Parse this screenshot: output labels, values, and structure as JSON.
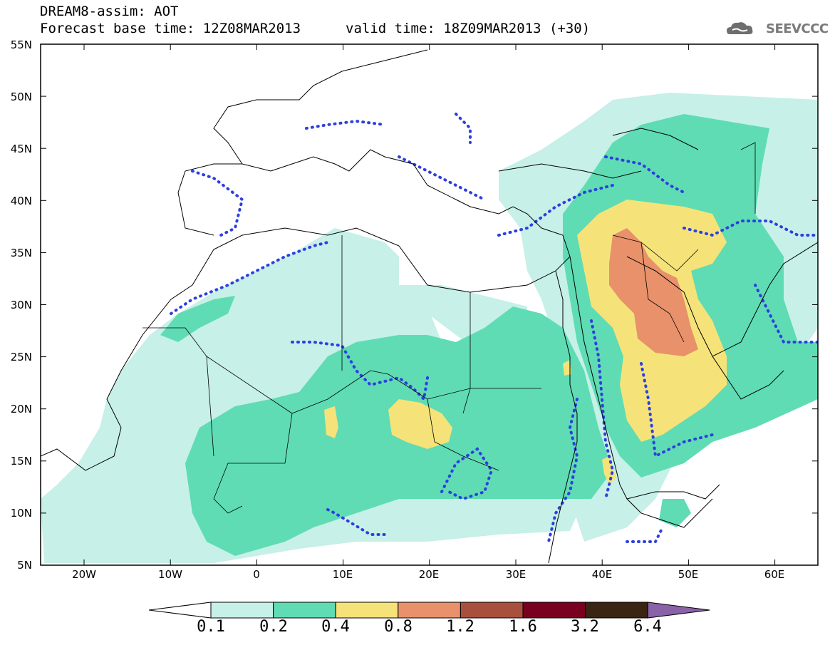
{
  "header": {
    "title_line1": "DREAM8-assim: AOT",
    "title_line2": "Forecast base time: 12Z08MAR2013",
    "valid_time": "valid time: 18Z09MAR2013 (+30)",
    "logo_text": "SEEVCCC"
  },
  "map": {
    "lat_labels": [
      "55N",
      "50N",
      "45N",
      "40N",
      "35N",
      "30N",
      "25N",
      "20N",
      "15N",
      "10N",
      "5N"
    ],
    "lon_labels": [
      "20W",
      "10W",
      "0",
      "10E",
      "20E",
      "30E",
      "40E",
      "50E",
      "60E"
    ],
    "contour_colors": [
      "#c6f0e8",
      "#5fdcb3",
      "#f5e37a",
      "#e8916a"
    ],
    "contour_line_color": "#2d3fe0",
    "border_color": "#000000"
  },
  "colorbar": {
    "labels": [
      "0.1",
      "0.2",
      "0.4",
      "0.8",
      "1.2",
      "1.6",
      "3.2",
      "6.4"
    ],
    "colors": [
      "#ffffff",
      "#c6f0e8",
      "#5fdcb3",
      "#f5e37a",
      "#e8916a",
      "#a8503d",
      "#7a0020",
      "#3a2412",
      "#8a62a8"
    ]
  }
}
